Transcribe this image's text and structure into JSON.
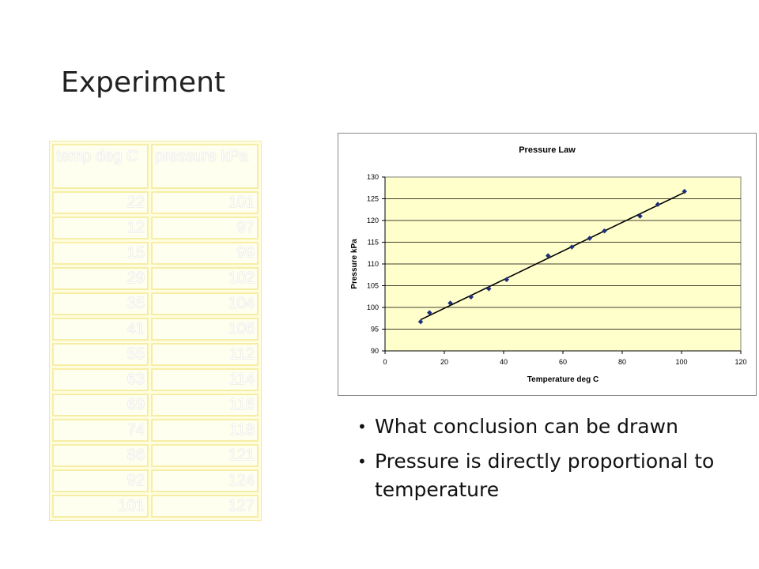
{
  "slide": {
    "title": "Experiment"
  },
  "table": {
    "headers": [
      "temp deg C",
      "pressure kPa"
    ],
    "rows": [
      [
        "22",
        "101"
      ],
      [
        "12",
        "97"
      ],
      [
        "15",
        "99"
      ],
      [
        "29",
        "102"
      ],
      [
        "35",
        "104"
      ],
      [
        "41",
        "106"
      ],
      [
        "55",
        "112"
      ],
      [
        "63",
        "114"
      ],
      [
        "69",
        "116"
      ],
      [
        "74",
        "118"
      ],
      [
        "86",
        "121"
      ],
      [
        "92",
        "124"
      ],
      [
        "101",
        "127"
      ]
    ]
  },
  "bullets": [
    "What conclusion can be drawn",
    "Pressure is directly proportional to temperature"
  ],
  "chart_data": {
    "type": "scatter",
    "title": "Pressure Law",
    "xlabel": "Temperature deg C",
    "ylabel": "Pressure kPa",
    "xlim": [
      0,
      120
    ],
    "ylim": [
      90,
      130
    ],
    "xticks": [
      0,
      20,
      40,
      60,
      80,
      100,
      120
    ],
    "yticks": [
      90,
      95,
      100,
      105,
      110,
      115,
      120,
      125,
      130
    ],
    "grid": "horizontal",
    "trendline": "linear",
    "plot_background": "#ffffcc",
    "marker_color": "#1f2f7a",
    "x": [
      12,
      15,
      22,
      29,
      35,
      41,
      55,
      63,
      69,
      74,
      86,
      92,
      101
    ],
    "y": [
      96.7,
      98.8,
      101,
      102.4,
      104.3,
      106.4,
      111.9,
      113.9,
      115.9,
      117.6,
      121,
      123.7,
      126.7
    ]
  }
}
